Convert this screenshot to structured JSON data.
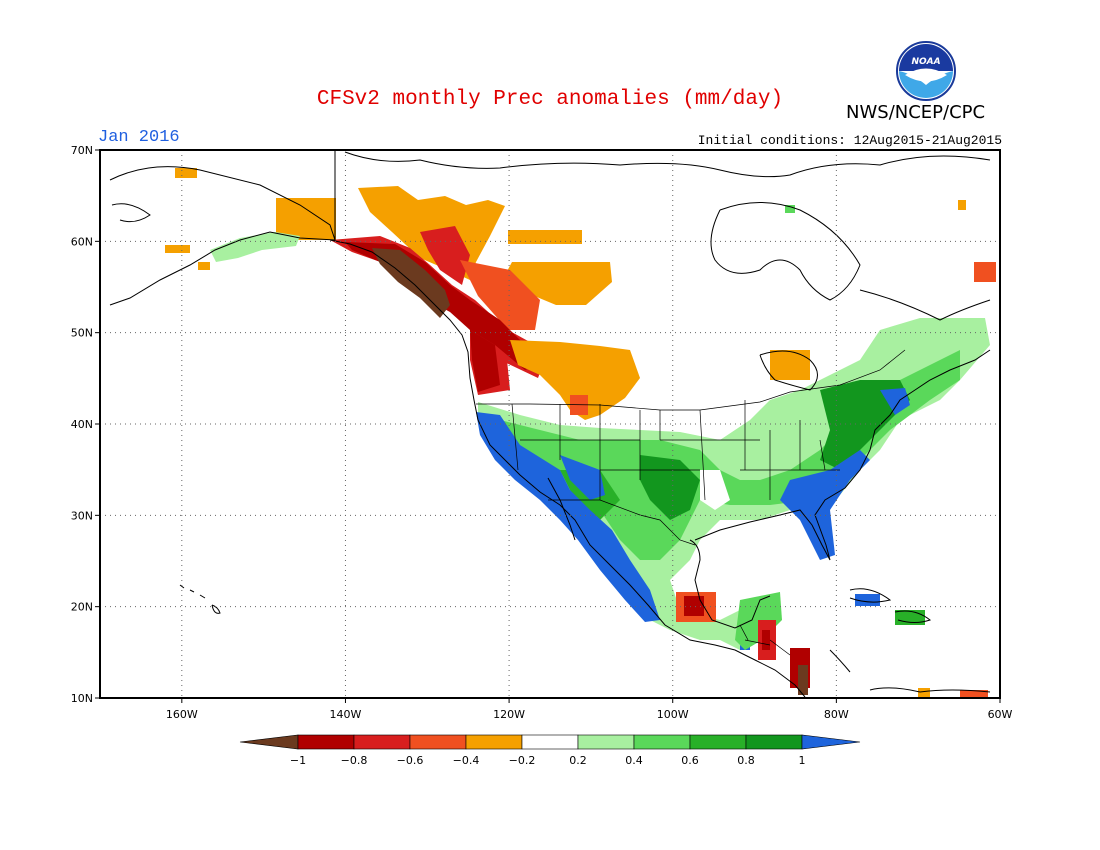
{
  "header": {
    "title": "CFSv2 monthly Prec anomalies (mm/day)",
    "month": "Jan 2016",
    "initial_conditions": "Initial conditions: 12Aug2015-21Aug2015",
    "agency": "NWS/NCEP/CPC",
    "logo_text": "NOAA"
  },
  "map": {
    "lat_labels": [
      "70N",
      "60N",
      "50N",
      "40N",
      "30N",
      "20N",
      "10N"
    ],
    "lat_values": [
      70,
      60,
      50,
      40,
      30,
      20,
      10
    ],
    "lon_labels": [
      "160W",
      "140W",
      "120W",
      "100W",
      "80W",
      "60W"
    ],
    "lon_values": [
      -160,
      -140,
      -120,
      -100,
      -80,
      -60
    ],
    "extent": {
      "lon": [
        -170,
        -60
      ],
      "lat": [
        10,
        70
      ]
    },
    "grid": "dotted"
  },
  "colorbar": {
    "labels": [
      "-1",
      "-0.8",
      "-0.6",
      "-0.4",
      "-0.2",
      "0.2",
      "0.4",
      "0.6",
      "0.8",
      "1"
    ],
    "colors": [
      "#6b3a1f",
      "#b00000",
      "#d81e1e",
      "#f05020",
      "#f5a000",
      "#ffffff",
      "#a8f0a0",
      "#5ad85a",
      "#28b028",
      "#12961e",
      "#1e64dc"
    ]
  },
  "colors": {
    "brown": "#6b3a1f",
    "dark_red": "#b00000",
    "red": "#d81e1e",
    "orange_red": "#f05020",
    "orange": "#f5a000",
    "light_green": "#a8f0a0",
    "green": "#5ad85a",
    "mid_green": "#28b028",
    "dark_green": "#12961e",
    "blue": "#1e64dc"
  }
}
